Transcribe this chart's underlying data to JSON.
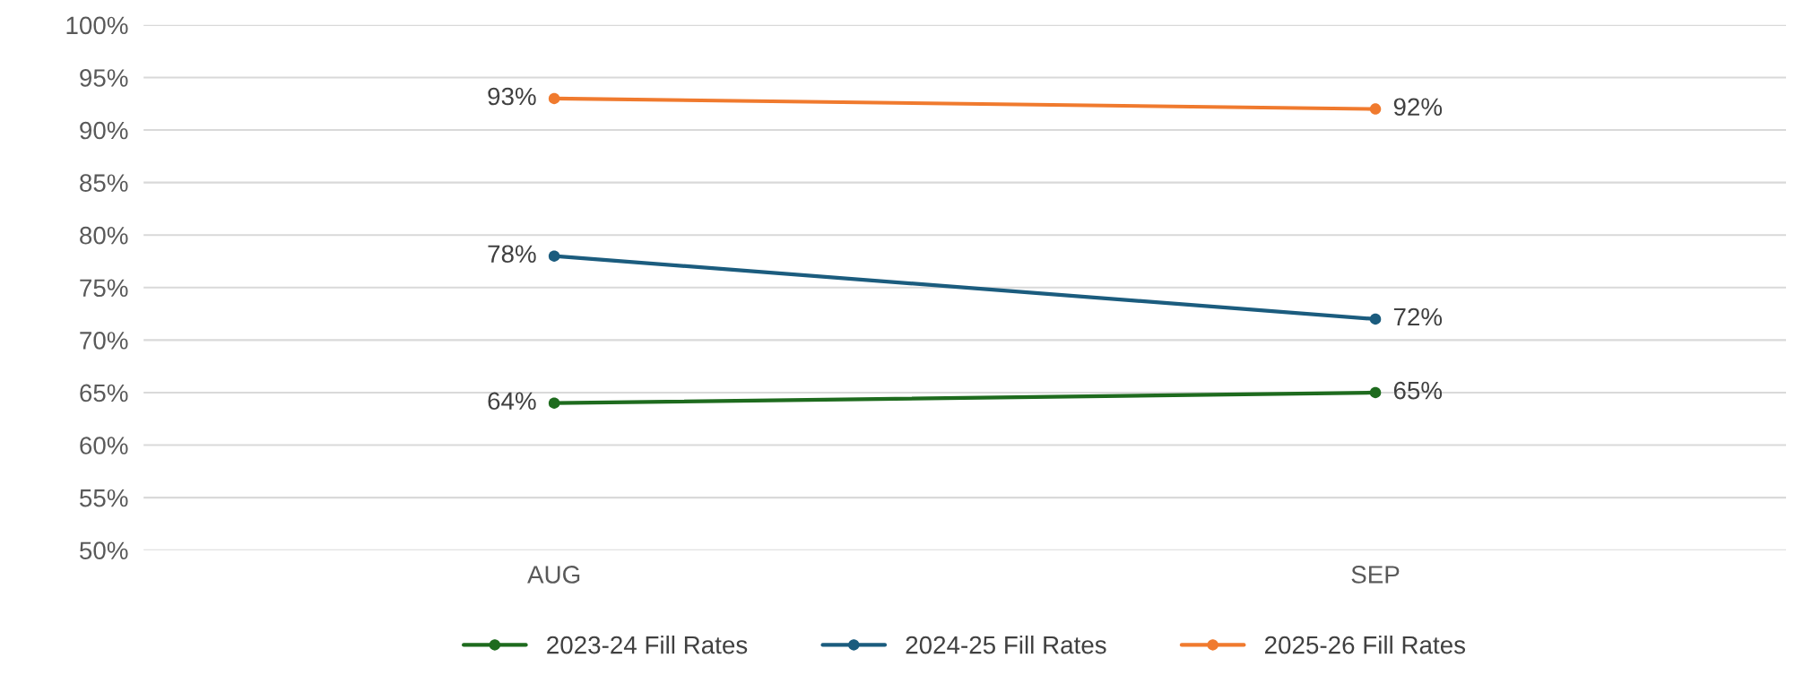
{
  "chart_data": {
    "type": "line",
    "categories": [
      "AUG",
      "SEP"
    ],
    "series": [
      {
        "name": "2023-24 Fill Rates",
        "color": "#1e6b1e",
        "values": [
          64,
          65
        ],
        "value_labels": [
          "64%",
          "65%"
        ]
      },
      {
        "name": "2024-25 Fill Rates",
        "color": "#1b5c7e",
        "values": [
          78,
          72
        ],
        "value_labels": [
          "78%",
          "72%"
        ]
      },
      {
        "name": "2025-26 Fill Rates",
        "color": "#f07a2e",
        "values": [
          93,
          92
        ],
        "value_labels": [
          "93%",
          "92%"
        ]
      }
    ],
    "ylim": [
      50,
      100
    ],
    "yticks": [
      {
        "value": 50,
        "label": "50%"
      },
      {
        "value": 55,
        "label": "55%"
      },
      {
        "value": 60,
        "label": "60%"
      },
      {
        "value": 65,
        "label": "65%"
      },
      {
        "value": 70,
        "label": "70%"
      },
      {
        "value": 75,
        "label": "75%"
      },
      {
        "value": 80,
        "label": "80%"
      },
      {
        "value": 85,
        "label": "85%"
      },
      {
        "value": 90,
        "label": "90%"
      },
      {
        "value": 95,
        "label": "95%"
      },
      {
        "value": 100,
        "label": "100%"
      }
    ],
    "grid": "y",
    "legend": "bottom",
    "marker": "circle",
    "line_style": "solid"
  }
}
